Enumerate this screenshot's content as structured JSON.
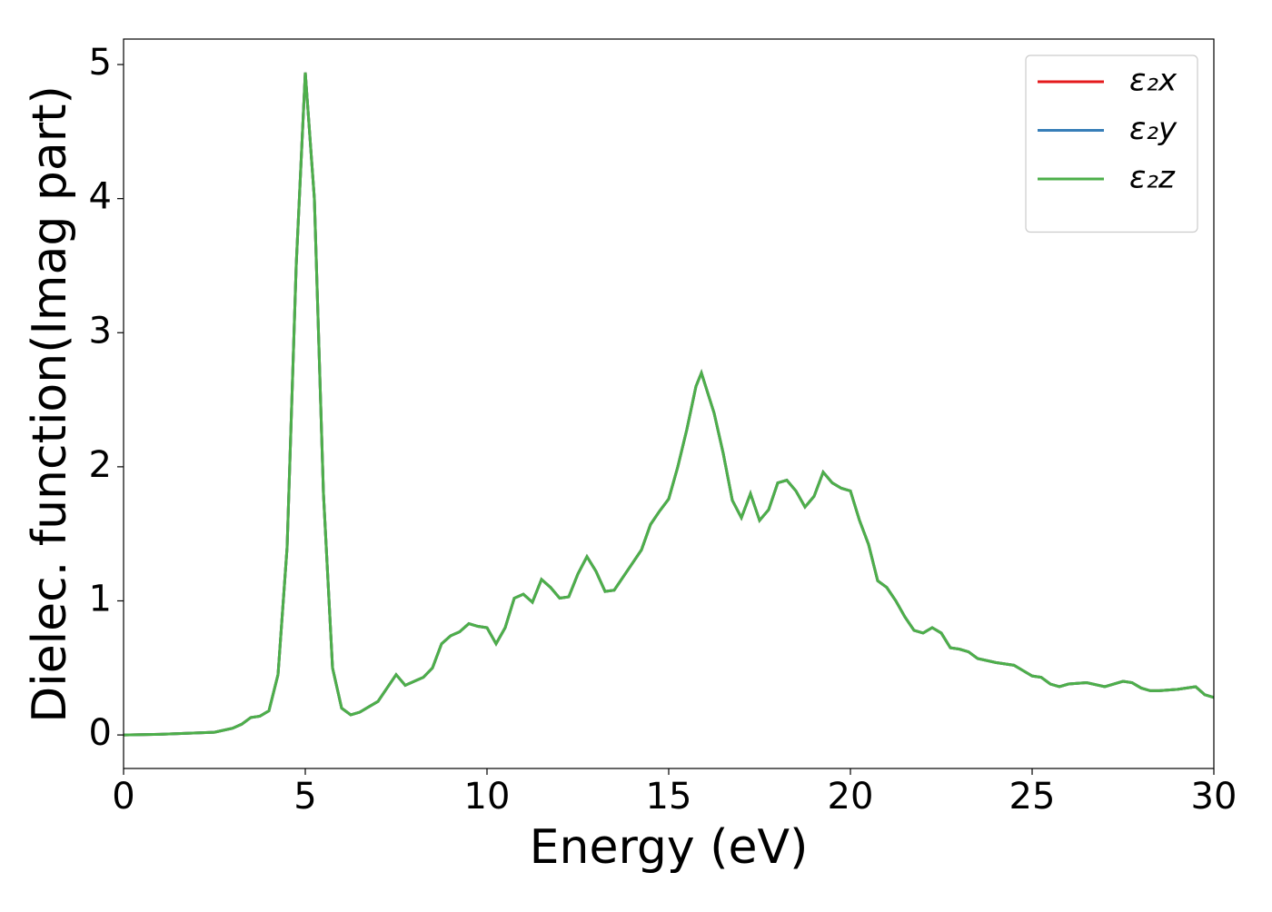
{
  "chart_data": {
    "type": "line",
    "xlabel": "Energy (eV)",
    "ylabel": "Dielec. function(Imag part)",
    "x": [
      0,
      1,
      2,
      2.5,
      3,
      3.25,
      3.5,
      3.75,
      4.0,
      4.25,
      4.5,
      4.75,
      5.0,
      5.25,
      5.5,
      5.75,
      6.0,
      6.25,
      6.5,
      6.75,
      7.0,
      7.25,
      7.5,
      7.75,
      8.0,
      8.25,
      8.5,
      8.75,
      9.0,
      9.25,
      9.5,
      9.75,
      10.0,
      10.25,
      10.5,
      10.75,
      11.0,
      11.25,
      11.5,
      11.75,
      12.0,
      12.25,
      12.5,
      12.75,
      13.0,
      13.25,
      13.5,
      13.75,
      14.0,
      14.25,
      14.5,
      14.75,
      15.0,
      15.25,
      15.5,
      15.75,
      15.9,
      16.25,
      16.5,
      16.75,
      17.0,
      17.25,
      17.5,
      17.75,
      18.0,
      18.25,
      18.5,
      18.75,
      19.0,
      19.25,
      19.5,
      19.75,
      20.0,
      20.25,
      20.5,
      20.75,
      21.0,
      21.25,
      21.5,
      21.75,
      22.0,
      22.25,
      22.5,
      22.75,
      23.0,
      23.25,
      23.5,
      24.0,
      24.5,
      24.75,
      25.0,
      25.25,
      25.5,
      25.75,
      26.0,
      26.5,
      27.0,
      27.5,
      27.75,
      28.0,
      28.25,
      28.5,
      29.0,
      29.5,
      29.75,
      30.0
    ],
    "series": [
      {
        "name": "ε₂x",
        "color": "#e41a1c",
        "values": [
          0.0,
          0.005,
          0.015,
          0.02,
          0.05,
          0.08,
          0.13,
          0.14,
          0.18,
          0.45,
          1.4,
          3.5,
          4.94,
          4.0,
          1.8,
          0.5,
          0.2,
          0.15,
          0.17,
          0.21,
          0.25,
          0.35,
          0.45,
          0.37,
          0.4,
          0.43,
          0.5,
          0.68,
          0.74,
          0.77,
          0.83,
          0.81,
          0.8,
          0.68,
          0.8,
          1.02,
          1.05,
          0.99,
          1.16,
          1.1,
          1.02,
          1.03,
          1.2,
          1.33,
          1.22,
          1.07,
          1.08,
          1.18,
          1.28,
          1.38,
          1.57,
          1.67,
          1.76,
          2.0,
          2.28,
          2.6,
          2.7,
          2.4,
          2.1,
          1.75,
          1.62,
          1.8,
          1.6,
          1.68,
          1.88,
          1.9,
          1.82,
          1.7,
          1.78,
          1.96,
          1.88,
          1.84,
          1.82,
          1.6,
          1.42,
          1.15,
          1.1,
          1.0,
          0.88,
          0.78,
          0.76,
          0.8,
          0.76,
          0.65,
          0.64,
          0.62,
          0.57,
          0.54,
          0.52,
          0.48,
          0.44,
          0.43,
          0.38,
          0.36,
          0.38,
          0.39,
          0.36,
          0.4,
          0.39,
          0.35,
          0.33,
          0.33,
          0.34,
          0.36,
          0.3,
          0.28
        ]
      },
      {
        "name": "ε₂y",
        "color": "#377eb8",
        "values": [
          0.0,
          0.005,
          0.015,
          0.02,
          0.05,
          0.08,
          0.13,
          0.14,
          0.18,
          0.45,
          1.4,
          3.5,
          4.94,
          4.0,
          1.8,
          0.5,
          0.2,
          0.15,
          0.17,
          0.21,
          0.25,
          0.35,
          0.45,
          0.37,
          0.4,
          0.43,
          0.5,
          0.68,
          0.74,
          0.77,
          0.83,
          0.81,
          0.8,
          0.68,
          0.8,
          1.02,
          1.05,
          0.99,
          1.16,
          1.1,
          1.02,
          1.03,
          1.2,
          1.33,
          1.22,
          1.07,
          1.08,
          1.18,
          1.28,
          1.38,
          1.57,
          1.67,
          1.76,
          2.0,
          2.28,
          2.6,
          2.7,
          2.4,
          2.1,
          1.75,
          1.62,
          1.8,
          1.6,
          1.68,
          1.88,
          1.9,
          1.82,
          1.7,
          1.78,
          1.96,
          1.88,
          1.84,
          1.82,
          1.6,
          1.42,
          1.15,
          1.1,
          1.0,
          0.88,
          0.78,
          0.76,
          0.8,
          0.76,
          0.65,
          0.64,
          0.62,
          0.57,
          0.54,
          0.52,
          0.48,
          0.44,
          0.43,
          0.38,
          0.36,
          0.38,
          0.39,
          0.36,
          0.4,
          0.39,
          0.35,
          0.33,
          0.33,
          0.34,
          0.36,
          0.3,
          0.28
        ]
      },
      {
        "name": "ε₂z",
        "color": "#4daf4a",
        "values": [
          0.0,
          0.005,
          0.015,
          0.02,
          0.05,
          0.08,
          0.13,
          0.14,
          0.18,
          0.45,
          1.4,
          3.5,
          4.94,
          4.0,
          1.8,
          0.5,
          0.2,
          0.15,
          0.17,
          0.21,
          0.25,
          0.35,
          0.45,
          0.37,
          0.4,
          0.43,
          0.5,
          0.68,
          0.74,
          0.77,
          0.83,
          0.81,
          0.8,
          0.68,
          0.8,
          1.02,
          1.05,
          0.99,
          1.16,
          1.1,
          1.02,
          1.03,
          1.2,
          1.33,
          1.22,
          1.07,
          1.08,
          1.18,
          1.28,
          1.38,
          1.57,
          1.67,
          1.76,
          2.0,
          2.28,
          2.6,
          2.7,
          2.4,
          2.1,
          1.75,
          1.62,
          1.8,
          1.6,
          1.68,
          1.88,
          1.9,
          1.82,
          1.7,
          1.78,
          1.96,
          1.88,
          1.84,
          1.82,
          1.6,
          1.42,
          1.15,
          1.1,
          1.0,
          0.88,
          0.78,
          0.76,
          0.8,
          0.76,
          0.65,
          0.64,
          0.62,
          0.57,
          0.54,
          0.52,
          0.48,
          0.44,
          0.43,
          0.38,
          0.36,
          0.38,
          0.39,
          0.36,
          0.4,
          0.39,
          0.35,
          0.33,
          0.33,
          0.34,
          0.36,
          0.3,
          0.28
        ]
      }
    ],
    "xlim": [
      0,
      30
    ],
    "xticks": [
      0,
      5,
      10,
      15,
      20,
      25,
      30
    ],
    "ylim": [
      -0.25,
      5.19
    ],
    "yticks": [
      0,
      1,
      2,
      3,
      4,
      5
    ],
    "grid": false,
    "legend": "upper right"
  }
}
